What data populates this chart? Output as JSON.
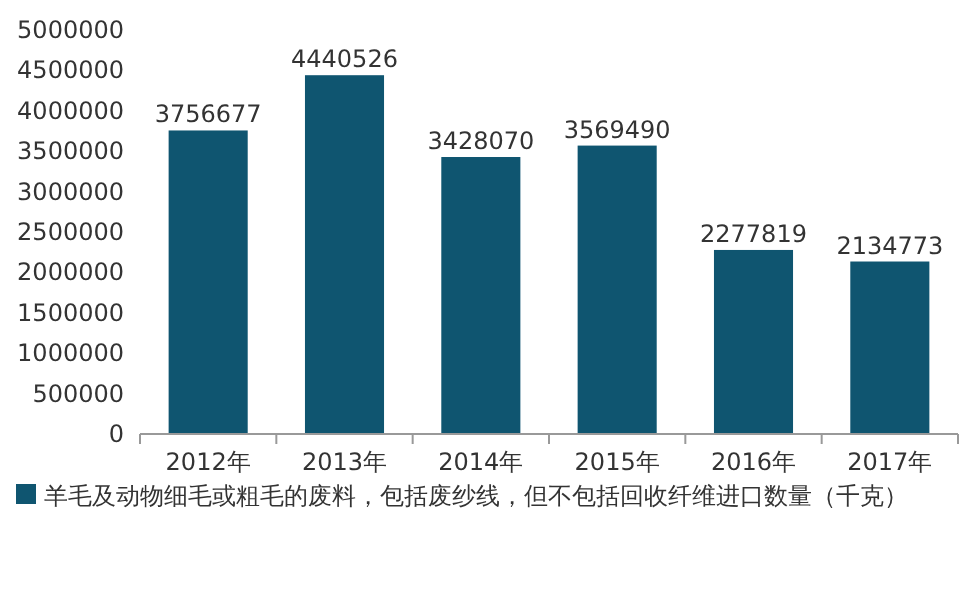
{
  "chart_data": {
    "type": "bar",
    "categories": [
      "2012年",
      "2013年",
      "2014年",
      "2015年",
      "2016年",
      "2017年"
    ],
    "series": [
      {
        "name": "羊毛及动物细毛或粗毛的废料，包括废纱线，但不包括回收纤维进口数量（千克）",
        "color": "#0f5570",
        "values": [
          3756677,
          4440526,
          3428070,
          3569490,
          2277819,
          2134773
        ]
      }
    ],
    "ylim": [
      0,
      5000000
    ],
    "yticks": [
      0,
      500000,
      1000000,
      1500000,
      2000000,
      2500000,
      3000000,
      3500000,
      4000000,
      4500000,
      5000000
    ],
    "data_labels": true,
    "legend": "bottom",
    "grid": false
  }
}
